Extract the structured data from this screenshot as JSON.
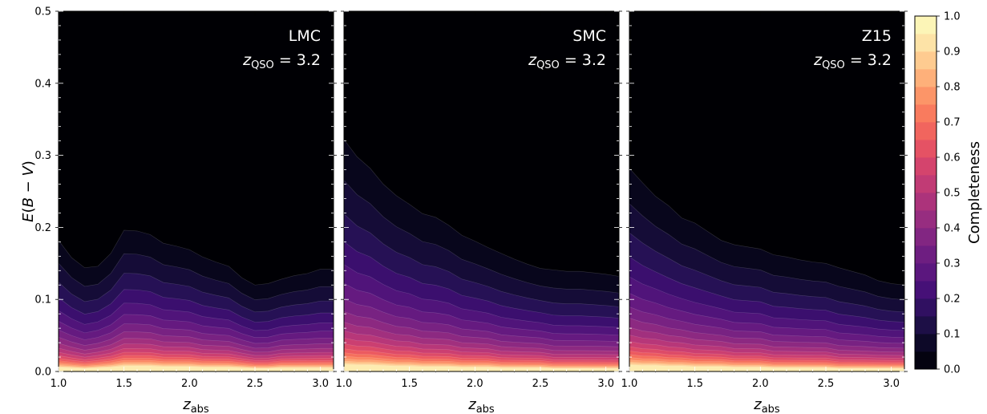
{
  "colormap": [
    "#000004",
    "#0c0926",
    "#231151",
    "#410f75",
    "#5f187f",
    "#7b2382",
    "#982d80",
    "#b73779",
    "#d3436e",
    "#eb5760",
    "#f8765c",
    "#fd9a6a",
    "#fec287",
    "#fde5a9",
    "#fcfdbf"
  ],
  "chart_data": [
    {
      "type": "heatmap",
      "subtype": "filled-contour",
      "title": "LMC",
      "subtitle": "z_QSO = 3.2",
      "xlabel": "z_abs",
      "ylabel": "E(B − V)",
      "xlim": [
        1.0,
        3.1
      ],
      "ylim": [
        0.0,
        0.5
      ],
      "xticks": [
        "1.0",
        "1.5",
        "2.0",
        "2.5",
        "3.0"
      ],
      "yticks": [
        "0.0",
        "0.1",
        "0.2",
        "0.3",
        "0.4",
        "0.5"
      ],
      "x": [
        1.0,
        1.1,
        1.2,
        1.3,
        1.4,
        1.5,
        1.6,
        1.7,
        1.8,
        1.9,
        2.0,
        2.1,
        2.2,
        2.3,
        2.4,
        2.5,
        2.6,
        2.7,
        2.8,
        2.9,
        3.0,
        3.1
      ],
      "contours": [
        {
          "level": 0.05,
          "y": [
            0.182,
            0.158,
            0.144,
            0.146,
            0.164,
            0.196,
            0.195,
            0.19,
            0.178,
            0.174,
            0.169,
            0.159,
            0.152,
            0.146,
            0.13,
            0.12,
            0.122,
            0.128,
            0.133,
            0.136,
            0.142,
            0.142
          ]
        },
        {
          "level": 0.9,
          "y": [
            0.007,
            0.006,
            0.005,
            0.006,
            0.007,
            0.009,
            0.009,
            0.009,
            0.008,
            0.008,
            0.008,
            0.007,
            0.007,
            0.007,
            0.006,
            0.005,
            0.005,
            0.006,
            0.006,
            0.006,
            0.006,
            0.006
          ]
        }
      ]
    },
    {
      "type": "heatmap",
      "subtype": "filled-contour",
      "title": "SMC",
      "subtitle": "z_QSO = 3.2",
      "xlabel": "z_abs",
      "ylabel": "",
      "xlim": [
        1.0,
        3.1
      ],
      "ylim": [
        0.0,
        0.5
      ],
      "xticks": [
        "1.0",
        "1.5",
        "2.0",
        "2.5",
        "3.0"
      ],
      "yticks": [
        "0.0",
        "0.1",
        "0.2",
        "0.3",
        "0.4",
        "0.5"
      ],
      "x": [
        1.0,
        1.1,
        1.2,
        1.3,
        1.4,
        1.5,
        1.6,
        1.7,
        1.8,
        1.9,
        2.0,
        2.1,
        2.2,
        2.3,
        2.4,
        2.5,
        2.6,
        2.7,
        2.8,
        2.9,
        3.0,
        3.1
      ],
      "contours": [
        {
          "level": 0.05,
          "y": [
            0.322,
            0.298,
            0.282,
            0.26,
            0.244,
            0.232,
            0.219,
            0.214,
            0.203,
            0.189,
            0.181,
            0.172,
            0.164,
            0.156,
            0.149,
            0.143,
            0.141,
            0.139,
            0.139,
            0.137,
            0.135,
            0.132
          ]
        },
        {
          "level": 0.9,
          "y": [
            0.012,
            0.011,
            0.011,
            0.01,
            0.009,
            0.009,
            0.008,
            0.008,
            0.008,
            0.007,
            0.007,
            0.007,
            0.006,
            0.006,
            0.006,
            0.006,
            0.005,
            0.005,
            0.005,
            0.005,
            0.005,
            0.005
          ]
        }
      ]
    },
    {
      "type": "heatmap",
      "subtype": "filled-contour",
      "title": "Z15",
      "subtitle": "z_QSO = 3.2",
      "xlabel": "z_abs",
      "ylabel": "",
      "xlim": [
        1.0,
        3.1
      ],
      "ylim": [
        0.0,
        0.5
      ],
      "xticks": [
        "1.0",
        "1.5",
        "2.0",
        "2.5",
        "3.0"
      ],
      "yticks": [
        "0.0",
        "0.1",
        "0.2",
        "0.3",
        "0.4",
        "0.5"
      ],
      "x": [
        1.0,
        1.1,
        1.2,
        1.3,
        1.4,
        1.5,
        1.6,
        1.7,
        1.8,
        1.9,
        2.0,
        2.1,
        2.2,
        2.3,
        2.4,
        2.5,
        2.6,
        2.7,
        2.8,
        2.9,
        3.0,
        3.1
      ],
      "contours": [
        {
          "level": 0.05,
          "y": [
            0.282,
            0.262,
            0.243,
            0.23,
            0.213,
            0.206,
            0.194,
            0.182,
            0.176,
            0.173,
            0.17,
            0.162,
            0.159,
            0.155,
            0.152,
            0.15,
            0.144,
            0.139,
            0.134,
            0.126,
            0.122,
            0.12
          ]
        },
        {
          "level": 0.9,
          "y": [
            0.011,
            0.01,
            0.01,
            0.009,
            0.009,
            0.008,
            0.008,
            0.008,
            0.007,
            0.007,
            0.007,
            0.006,
            0.006,
            0.006,
            0.006,
            0.006,
            0.005,
            0.005,
            0.005,
            0.005,
            0.005,
            0.005
          ]
        }
      ]
    }
  ],
  "colorbar": {
    "label": "Completeness",
    "range": [
      0.0,
      1.0
    ],
    "ticks": [
      "0.0",
      "0.1",
      "0.2",
      "0.3",
      "0.4",
      "0.5",
      "0.6",
      "0.7",
      "0.8",
      "0.9",
      "1.0"
    ],
    "n_levels": 20
  }
}
